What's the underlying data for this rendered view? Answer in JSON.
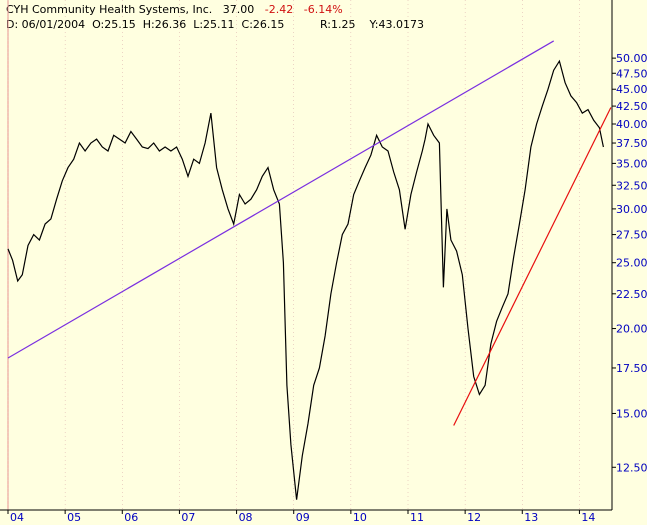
{
  "header": {
    "ticker": "CYH",
    "company": "Community Health Systems, Inc.",
    "last": "37.00",
    "change": "-2.42",
    "change_pct": "-6.14%",
    "date_label": "D: 06/01/2004",
    "open": "O:25.15",
    "high": "H:26.36",
    "low": "L:25.11",
    "close": "C:26.15",
    "ratio": "R:1.25",
    "yval": "Y:43.0173"
  },
  "colors": {
    "background": "#ffffe0",
    "price_line": "#000000",
    "trend_line_1": "#7a2fe0",
    "trend_line_2": "#e81010",
    "down_text": "#d01010",
    "axis_text": "#0000c0",
    "gridline": "#d8a8a8"
  },
  "chart_data": {
    "type": "line",
    "scale": "log",
    "ylim": [
      11,
      55
    ],
    "y_ticks": [
      "50.00",
      "47.50",
      "45.00",
      "42.50",
      "40.00",
      "37.50",
      "35.00",
      "32.50",
      "30.00",
      "27.50",
      "25.00",
      "22.50",
      "20.00",
      "17.50",
      "15.00",
      "12.50"
    ],
    "y_tick_values": [
      50,
      47.5,
      45,
      42.5,
      40,
      37.5,
      35,
      32.5,
      30,
      27.5,
      25,
      22.5,
      20,
      17.5,
      15,
      12.5
    ],
    "x_ticks": [
      "04",
      "05",
      "06",
      "07",
      "08",
      "09",
      "10",
      "11",
      "12",
      "13",
      "14"
    ],
    "x_tick_years": [
      2004,
      2005,
      2006,
      2007,
      2008,
      2009,
      2010,
      2011,
      2012,
      2013,
      2014
    ],
    "xlim_years": [
      2004.0,
      2014.5
    ],
    "series": [
      {
        "x": [
          2004.0,
          2004.08,
          2004.17,
          2004.25,
          2004.35,
          2004.45,
          2004.55,
          2004.65,
          2004.75,
          2004.85,
          2004.95,
          2005.05,
          2005.15,
          2005.25,
          2005.35,
          2005.45,
          2005.55,
          2005.65,
          2005.75,
          2005.85,
          2005.95,
          2006.05,
          2006.15,
          2006.25,
          2006.35,
          2006.45,
          2006.55,
          2006.65,
          2006.75,
          2006.85,
          2006.95,
          2007.05,
          2007.15,
          2007.25,
          2007.35,
          2007.45,
          2007.55,
          2007.65,
          2007.75,
          2007.85,
          2007.95,
          2008.05,
          2008.15,
          2008.25,
          2008.35,
          2008.45,
          2008.55,
          2008.65,
          2008.75,
          2008.82,
          2008.88,
          2008.95,
          2009.05,
          2009.15,
          2009.25,
          2009.35,
          2009.45,
          2009.55,
          2009.65,
          2009.75,
          2009.85,
          2009.95,
          2010.05,
          2010.15,
          2010.25,
          2010.35,
          2010.45,
          2010.55,
          2010.65,
          2010.75,
          2010.85,
          2010.95,
          2011.05,
          2011.15,
          2011.25,
          2011.3,
          2011.35,
          2011.45,
          2011.55,
          2011.62,
          2011.68,
          2011.75,
          2011.85,
          2011.95,
          2012.05,
          2012.15,
          2012.25,
          2012.35,
          2012.45,
          2012.55,
          2012.65,
          2012.75,
          2012.85,
          2012.95,
          2013.05,
          2013.15,
          2013.25,
          2013.35,
          2013.45,
          2013.55,
          2013.65,
          2013.75,
          2013.85,
          2013.95,
          2014.05,
          2014.15,
          2014.25,
          2014.35,
          2014.42
        ],
        "values": [
          26.2,
          25.2,
          23.5,
          24.0,
          26.5,
          27.5,
          27.0,
          28.5,
          29.0,
          31.0,
          33.0,
          34.5,
          35.5,
          37.5,
          36.5,
          37.5,
          38.0,
          37.0,
          36.5,
          38.5,
          38.0,
          37.5,
          39.0,
          38.0,
          37.0,
          36.8,
          37.5,
          36.5,
          37.0,
          36.5,
          37.0,
          35.5,
          33.5,
          35.5,
          35.0,
          37.5,
          41.5,
          34.5,
          32.0,
          30.0,
          28.5,
          31.5,
          30.5,
          31.0,
          32.0,
          33.5,
          34.5,
          32.0,
          30.5,
          25.0,
          16.5,
          13.5,
          11.2,
          13.0,
          14.5,
          16.5,
          17.5,
          19.5,
          22.5,
          25.0,
          27.5,
          28.5,
          31.5,
          33.0,
          34.5,
          36.0,
          38.5,
          37.0,
          36.5,
          34.0,
          32.0,
          28.0,
          31.5,
          34.0,
          36.5,
          38.0,
          40.0,
          38.5,
          37.5,
          23.0,
          30.0,
          27.0,
          26.0,
          24.0,
          20.0,
          17.0,
          16.0,
          16.5,
          19.0,
          20.5,
          21.5,
          22.5,
          25.5,
          28.5,
          32.0,
          37.0,
          40.0,
          42.5,
          45.0,
          48.0,
          49.5,
          46.0,
          44.0,
          43.0,
          41.5,
          42.0,
          40.5,
          39.5,
          37.0
        ]
      }
    ],
    "trend_lines": [
      {
        "x": [
          2004.0,
          2013.55
        ],
        "y": [
          18.1,
          53.0
        ]
      },
      {
        "x": [
          2011.8,
          2014.55
        ],
        "y": [
          14.4,
          42.3
        ]
      }
    ]
  }
}
